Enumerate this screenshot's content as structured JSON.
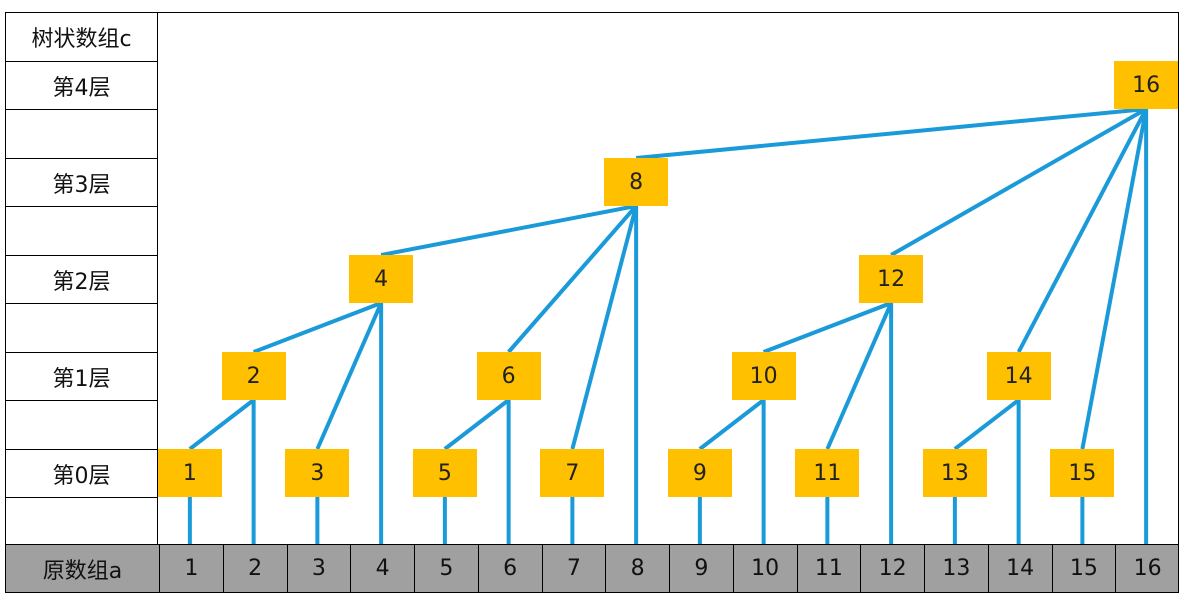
{
  "labels": {
    "tree_array": "树状数组c",
    "level_4": "第4层",
    "level_3": "第3层",
    "level_2": "第2层",
    "level_1": "第1层",
    "level_0": "第0层",
    "original_array": "原数组a"
  },
  "original_array": [
    "1",
    "2",
    "3",
    "4",
    "5",
    "6",
    "7",
    "8",
    "9",
    "10",
    "11",
    "12",
    "13",
    "14",
    "15",
    "16"
  ],
  "tree_nodes": [
    {
      "label": "1",
      "level": 0
    },
    {
      "label": "2",
      "level": 1
    },
    {
      "label": "3",
      "level": 0
    },
    {
      "label": "4",
      "level": 2
    },
    {
      "label": "5",
      "level": 0
    },
    {
      "label": "6",
      "level": 1
    },
    {
      "label": "7",
      "level": 0
    },
    {
      "label": "8",
      "level": 3
    },
    {
      "label": "9",
      "level": 0
    },
    {
      "label": "10",
      "level": 1
    },
    {
      "label": "11",
      "level": 0
    },
    {
      "label": "12",
      "level": 2
    },
    {
      "label": "13",
      "level": 0
    },
    {
      "label": "14",
      "level": 1
    },
    {
      "label": "15",
      "level": 0
    },
    {
      "label": "16",
      "level": 4
    }
  ],
  "edges": [
    [
      "1",
      "2"
    ],
    [
      "2",
      "4"
    ],
    [
      "3",
      "4"
    ],
    [
      "4",
      "8"
    ],
    [
      "5",
      "6"
    ],
    [
      "6",
      "8"
    ],
    [
      "7",
      "8"
    ],
    [
      "8",
      "16"
    ],
    [
      "9",
      "10"
    ],
    [
      "10",
      "12"
    ],
    [
      "11",
      "12"
    ],
    [
      "12",
      "16"
    ],
    [
      "13",
      "14"
    ],
    [
      "14",
      "16"
    ],
    [
      "15",
      "16"
    ]
  ],
  "colors": {
    "node_fill": "#ffc000",
    "edge": "#1a9ad8",
    "bottom_fill": "#a0a0a0"
  }
}
